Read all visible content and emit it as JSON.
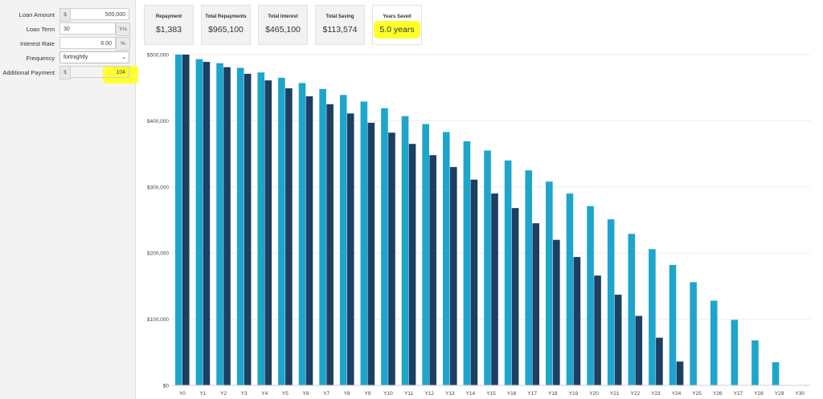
{
  "form": {
    "loan_amount": {
      "label": "Loan Amount",
      "prefix": "$",
      "value": "500,000"
    },
    "loan_term": {
      "label": "Loan Term",
      "value": "30",
      "suffix": "Yrs"
    },
    "interest_rate": {
      "label": "Interest Rate",
      "value": "6.00",
      "suffix": "%"
    },
    "frequency": {
      "label": "Frequency",
      "value": "fortnightly"
    },
    "additional_payment": {
      "label": "Additional Payment",
      "prefix": "$",
      "value": "104"
    }
  },
  "summary": [
    {
      "title": "Repayment",
      "value": "$1,383"
    },
    {
      "title": "Total Repayments",
      "value": "$965,100"
    },
    {
      "title": "Total Interest",
      "value": "$465,100"
    },
    {
      "title": "Total Saving",
      "value": "$113,574"
    },
    {
      "title": "Years Saved",
      "value": "5.0 years"
    }
  ],
  "colors": {
    "series_original": "#1ea5cc",
    "series_extra": "#1c3f63",
    "highlight": "#ffff29"
  },
  "chart_data": {
    "type": "bar",
    "categories": [
      "Y0",
      "Y1",
      "Y2",
      "Y3",
      "Y4",
      "Y5",
      "Y6",
      "Y7",
      "Y8",
      "Y9",
      "Y10",
      "Y11",
      "Y12",
      "Y13",
      "Y14",
      "Y15",
      "Y16",
      "Y17",
      "Y18",
      "Y19",
      "Y20",
      "Y21",
      "Y22",
      "Y23",
      "Y24",
      "Y25",
      "Y26",
      "Y27",
      "Y28",
      "Y29",
      "Y30"
    ],
    "series": [
      {
        "color": "#1ea5cc",
        "values": [
          500000,
          493000,
          487000,
          480000,
          473000,
          465000,
          457000,
          448000,
          439000,
          429000,
          419000,
          407000,
          395000,
          383000,
          369000,
          355000,
          340000,
          325000,
          308000,
          290000,
          271000,
          251000,
          229000,
          206000,
          182000,
          156000,
          128000,
          99000,
          68000,
          35000,
          0
        ]
      },
      {
        "color": "#1c3f63",
        "values": [
          500000,
          489000,
          481000,
          471000,
          461000,
          449000,
          437000,
          425000,
          411000,
          397000,
          382000,
          365000,
          348000,
          330000,
          311000,
          290000,
          268000,
          245000,
          220000,
          194000,
          166000,
          137000,
          105000,
          72000,
          36000,
          0,
          0,
          0,
          0,
          0,
          0
        ]
      }
    ],
    "yticks": [
      "$0",
      "$100,000",
      "$200,000",
      "$300,000",
      "$400,000",
      "$500,000"
    ],
    "ylim": [
      0,
      500000
    ],
    "xlabel": "",
    "ylabel": "",
    "title": "",
    "grid": true
  }
}
